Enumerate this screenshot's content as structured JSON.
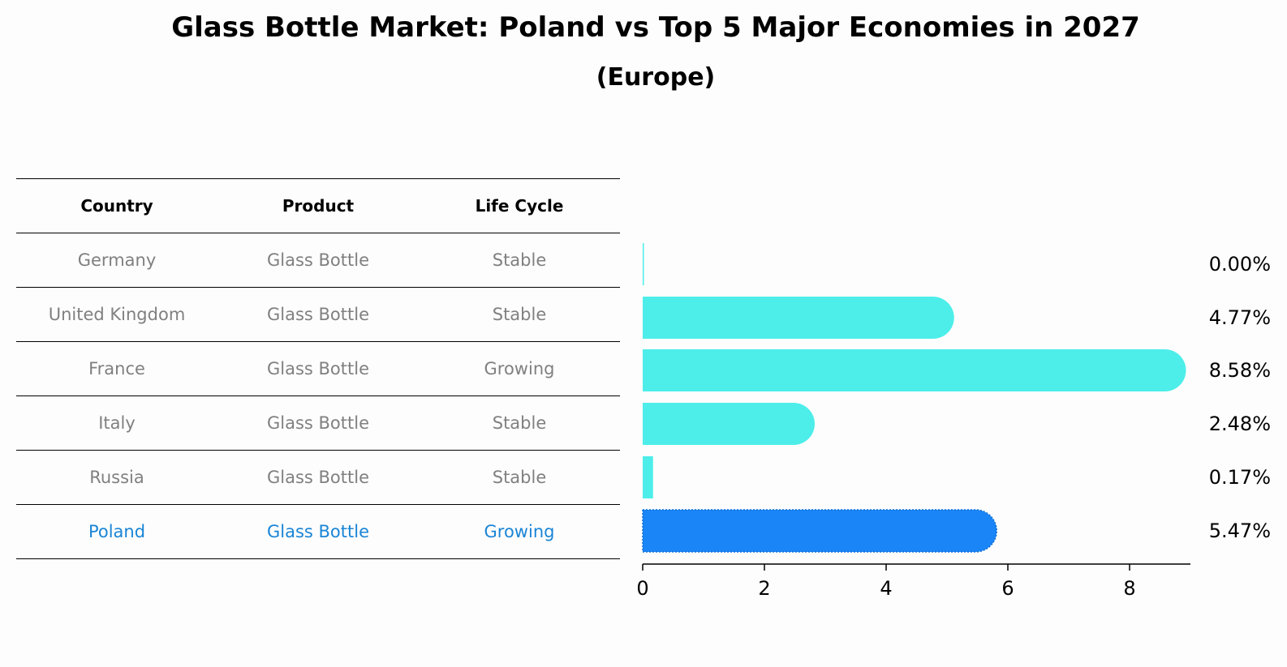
{
  "title": "Glass Bottle Market: Poland vs Top 5 Major Economies in 2027",
  "subtitle": "(Europe)",
  "table": {
    "headers": [
      "Country",
      "Product",
      "Life Cycle"
    ],
    "rows": [
      {
        "country": "Germany",
        "product": "Glass Bottle",
        "life_cycle": "Stable"
      },
      {
        "country": "United Kingdom",
        "product": "Glass Bottle",
        "life_cycle": "Stable"
      },
      {
        "country": "France",
        "product": "Glass Bottle",
        "life_cycle": "Growing"
      },
      {
        "country": "Italy",
        "product": "Glass Bottle",
        "life_cycle": "Stable"
      },
      {
        "country": "Russia",
        "product": "Glass Bottle",
        "life_cycle": "Stable"
      },
      {
        "country": "Poland",
        "product": "Glass Bottle",
        "life_cycle": "Growing"
      }
    ]
  },
  "colors": {
    "bar": "#4deeea",
    "highlight": "#1a85f7",
    "muted_text": "#808080",
    "highlight_text": "#1a85d6"
  },
  "chart_data": {
    "type": "bar",
    "orientation": "horizontal",
    "title": "Glass Bottle Market: Poland vs Top 5 Major Economies in 2027",
    "subtitle": "(Europe)",
    "categories": [
      "Germany",
      "United Kingdom",
      "France",
      "Italy",
      "Russia",
      "Poland"
    ],
    "values": [
      0.0,
      4.77,
      8.58,
      2.48,
      0.17,
      5.47
    ],
    "value_labels": [
      "0.00%",
      "4.77%",
      "8.58%",
      "2.48%",
      "0.17%",
      "5.47%"
    ],
    "highlight_category": "Poland",
    "xlim": [
      0,
      9
    ],
    "xticks": [
      0,
      2,
      4,
      6,
      8
    ],
    "xlabel": "",
    "ylabel": "",
    "grid": false
  }
}
